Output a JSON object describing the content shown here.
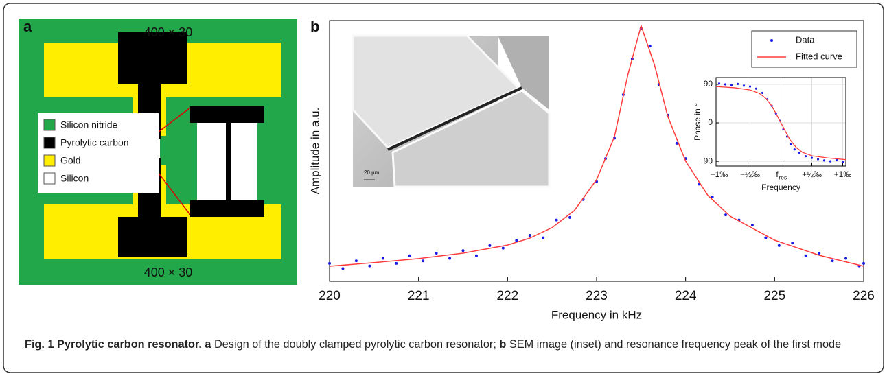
{
  "panel_a": {
    "label": "a",
    "top_dimension": "400 × 30",
    "bottom_dimension": "400 × 30",
    "legend": [
      "Silicon nitride",
      "Pyrolytic carbon",
      "Gold",
      "Silicon"
    ]
  },
  "panel_b": {
    "label": "b",
    "scale_bar": "20 µm"
  },
  "chart_data": [
    {
      "type": "line",
      "xlabel": "Frequency in kHz",
      "ylabel": "Amplitude in a.u.",
      "xlim": [
        220,
        226
      ],
      "xticks": [
        220,
        221,
        222,
        223,
        224,
        225,
        226
      ],
      "ylim": [
        0,
        1.02
      ],
      "legend": "upper right",
      "series": [
        {
          "name": "Data",
          "color": "#1a1ae6",
          "style": "markers",
          "x": [
            220.0,
            220.15,
            220.3,
            220.45,
            220.6,
            220.75,
            220.9,
            221.05,
            221.2,
            221.35,
            221.5,
            221.65,
            221.8,
            221.95,
            222.1,
            222.25,
            222.4,
            222.55,
            222.7,
            222.85,
            223.0,
            223.1,
            223.2,
            223.3,
            223.4,
            223.5,
            223.6,
            223.7,
            223.8,
            223.9,
            224.0,
            224.15,
            224.3,
            224.45,
            224.6,
            224.75,
            224.9,
            225.05,
            225.2,
            225.35,
            225.5,
            225.65,
            225.8,
            225.95,
            226.0
          ],
          "values": [
            0.07,
            0.05,
            0.08,
            0.06,
            0.09,
            0.07,
            0.1,
            0.08,
            0.11,
            0.09,
            0.12,
            0.1,
            0.14,
            0.13,
            0.16,
            0.18,
            0.17,
            0.24,
            0.25,
            0.32,
            0.39,
            0.48,
            0.56,
            0.73,
            0.87,
            0.99,
            0.92,
            0.77,
            0.65,
            0.54,
            0.48,
            0.38,
            0.33,
            0.26,
            0.24,
            0.22,
            0.17,
            0.14,
            0.15,
            0.1,
            0.11,
            0.08,
            0.09,
            0.06,
            0.07
          ]
        },
        {
          "name": "Fitted curve",
          "color": "#ff3b3b",
          "style": "line",
          "x": [
            220,
            220.5,
            221,
            221.5,
            222,
            222.25,
            222.5,
            222.75,
            223,
            223.2,
            223.35,
            223.5,
            223.65,
            223.8,
            224,
            224.25,
            224.5,
            225,
            225.5,
            226
          ],
          "values": [
            0.059,
            0.073,
            0.089,
            0.11,
            0.142,
            0.169,
            0.21,
            0.277,
            0.398,
            0.565,
            0.806,
            1,
            0.847,
            0.645,
            0.47,
            0.336,
            0.255,
            0.161,
            0.102,
            0.059
          ]
        }
      ]
    },
    {
      "type": "line",
      "xlabel": "Frequency",
      "ylabel": "Phase in °",
      "grid": true,
      "xlim": [
        -1.05,
        1.05
      ],
      "xticks": [
        {
          "value": -1,
          "label": "−1‰"
        },
        {
          "value": -0.5,
          "label": "−½‰"
        },
        {
          "value": 0,
          "label": "f",
          "subscript": "res"
        },
        {
          "value": 0.5,
          "label": "+½‰"
        },
        {
          "value": 1,
          "label": "+1‰"
        }
      ],
      "ylim": [
        -101,
        106
      ],
      "yticks": [
        {
          "value": -90,
          "label": "−90"
        },
        0,
        90
      ],
      "series": [
        {
          "name": "Data",
          "color": "#1a1ae6",
          "style": "markers",
          "x": [
            -1,
            -0.9,
            -0.8,
            -0.7,
            -0.6,
            -0.5,
            -0.4,
            -0.3,
            -0.22,
            -0.15,
            -0.08,
            -0.02,
            0.04,
            0.1,
            0.16,
            0.22,
            0.3,
            0.4,
            0.5,
            0.6,
            0.7,
            0.8,
            0.9,
            1
          ],
          "values": [
            92,
            90,
            88,
            91,
            87,
            85,
            80,
            70,
            55,
            40,
            22,
            5,
            -15,
            -32,
            -50,
            -62,
            -70,
            -78,
            -82,
            -85,
            -88,
            -90,
            -87,
            -92
          ]
        },
        {
          "name": "Fitted curve",
          "color": "#ff3b3b",
          "style": "line",
          "x": [
            -1.05,
            -0.75,
            -0.5,
            -0.35,
            -0.25,
            -0.15,
            -0.08,
            0,
            0.08,
            0.15,
            0.25,
            0.35,
            0.5,
            0.75,
            1.05
          ],
          "values": [
            85,
            82,
            77,
            69,
            58,
            40,
            22,
            0,
            -22,
            -40,
            -58,
            -69,
            -77,
            -82,
            -86
          ]
        }
      ]
    }
  ],
  "caption": {
    "title": "Fig. 1 Pyrolytic carbon resonator.",
    "a_label": "a",
    "a_text": " Design of the doubly clamped pyrolytic carbon resonator; ",
    "b_label": "b",
    "b_text": " SEM image (inset) and resonance frequency peak of the first mode"
  }
}
